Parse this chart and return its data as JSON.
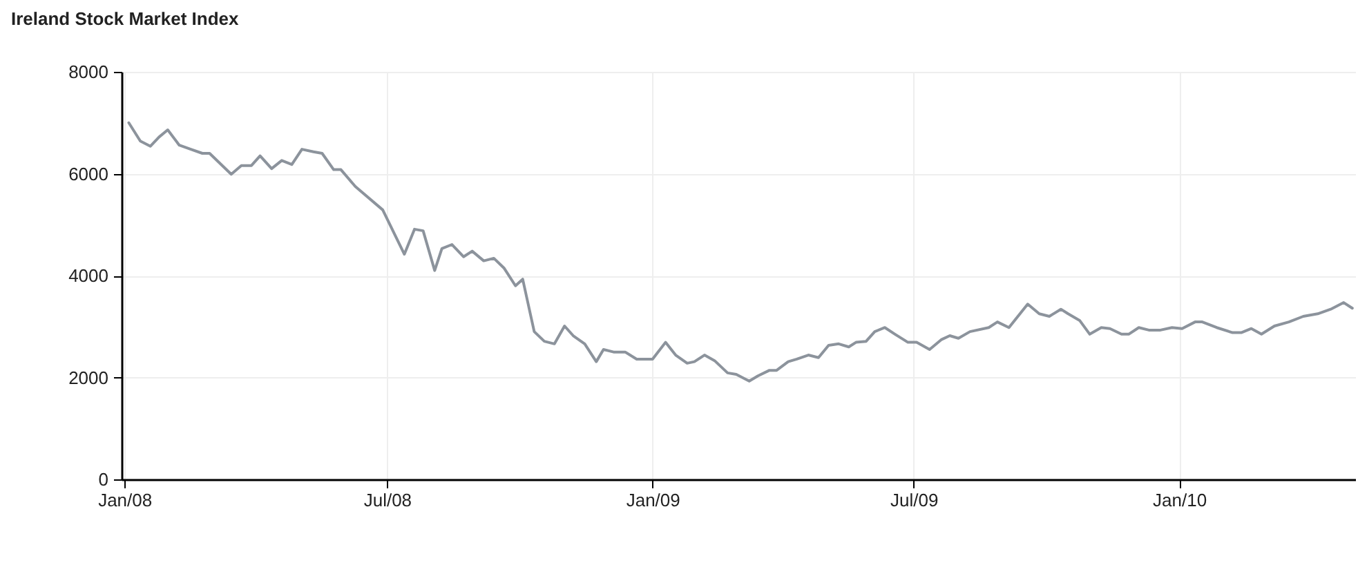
{
  "chart_data": {
    "type": "line",
    "title": "Ireland Stock Market Index",
    "x": [
      "2008-01-04",
      "2008-01-12",
      "2008-01-19",
      "2008-01-25",
      "2008-01-31",
      "2008-02-08",
      "2008-02-16",
      "2008-02-24",
      "2008-02-29",
      "2008-03-15",
      "2008-03-22",
      "2008-03-29",
      "2008-04-04",
      "2008-04-12",
      "2008-04-19",
      "2008-04-26",
      "2008-05-03",
      "2008-05-11",
      "2008-05-17",
      "2008-05-25",
      "2008-05-30",
      "2008-06-09",
      "2008-06-28",
      "2008-07-13",
      "2008-07-20",
      "2008-07-26",
      "2008-08-03",
      "2008-08-08",
      "2008-08-15",
      "2008-08-23",
      "2008-08-29",
      "2008-09-06",
      "2008-09-13",
      "2008-09-20",
      "2008-09-28",
      "2008-10-03",
      "2008-10-11",
      "2008-10-18",
      "2008-10-25",
      "2008-11-01",
      "2008-11-07",
      "2008-11-15",
      "2008-11-23",
      "2008-11-28",
      "2008-12-05",
      "2008-12-13",
      "2008-12-21",
      "2009-01-01",
      "2009-01-10",
      "2009-01-17",
      "2009-01-25",
      "2009-01-30",
      "2009-02-06",
      "2009-02-13",
      "2009-02-22",
      "2009-02-28",
      "2009-03-09",
      "2009-03-15",
      "2009-03-23",
      "2009-03-28",
      "2009-04-05",
      "2009-04-11",
      "2009-04-19",
      "2009-04-26",
      "2009-05-03",
      "2009-05-10",
      "2009-05-17",
      "2009-05-22",
      "2009-05-29",
      "2009-06-04",
      "2009-06-11",
      "2009-06-18",
      "2009-06-27",
      "2009-07-03",
      "2009-07-12",
      "2009-07-20",
      "2009-07-26",
      "2009-08-01",
      "2009-08-09",
      "2009-08-22",
      "2009-08-28",
      "2009-09-05",
      "2009-09-18",
      "2009-09-26",
      "2009-10-03",
      "2009-10-11",
      "2009-10-16",
      "2009-10-24",
      "2009-10-31",
      "2009-11-08",
      "2009-11-14",
      "2009-11-22",
      "2009-11-27",
      "2009-12-04",
      "2009-12-11",
      "2009-12-19",
      "2009-12-27",
      "2010-01-03",
      "2010-01-12",
      "2010-01-17",
      "2010-01-27",
      "2010-02-07",
      "2010-02-13",
      "2010-02-20",
      "2010-02-27",
      "2010-03-08",
      "2010-03-18",
      "2010-03-28",
      "2010-04-07",
      "2010-04-16",
      "2010-04-25",
      "2010-05-01"
    ],
    "series": [
      {
        "color": "#8c939c",
        "values": [
          7000,
          6640,
          6540,
          6720,
          6860,
          6560,
          6480,
          6400,
          6400,
          5990,
          6160,
          6160,
          6350,
          6100,
          6260,
          6180,
          6480,
          6430,
          6400,
          6080,
          6080,
          5750,
          5290,
          4420,
          4910,
          4880,
          4100,
          4530,
          4610,
          4370,
          4480,
          4290,
          4340,
          4150,
          3800,
          3930,
          2900,
          2710,
          2660,
          3010,
          2820,
          2660,
          2310,
          2550,
          2500,
          2500,
          2360,
          2360,
          2690,
          2440,
          2280,
          2310,
          2440,
          2330,
          2090,
          2060,
          1930,
          2030,
          2140,
          2140,
          2310,
          2360,
          2440,
          2390,
          2630,
          2660,
          2600,
          2690,
          2710,
          2900,
          2980,
          2850,
          2690,
          2690,
          2550,
          2740,
          2820,
          2770,
          2900,
          2980,
          3090,
          2980,
          3440,
          3250,
          3200,
          3340,
          3250,
          3120,
          2850,
          2980,
          2960,
          2850,
          2850,
          2980,
          2930,
          2930,
          2980,
          2960,
          3090,
          3090,
          2980,
          2880,
          2880,
          2960,
          2850,
          3010,
          3090,
          3200,
          3250,
          3340,
          3470,
          3360
        ]
      }
    ],
    "xlim": [
      "2007-12-30",
      "2010-05-03"
    ],
    "xticks": [
      {
        "value": "2008-01-01",
        "label": "Jan/08"
      },
      {
        "value": "2008-07-01",
        "label": "Jul/08"
      },
      {
        "value": "2009-01-01",
        "label": "Jan/09"
      },
      {
        "value": "2009-07-01",
        "label": "Jul/09"
      },
      {
        "value": "2010-01-01",
        "label": "Jan/10"
      }
    ],
    "ylim": [
      0,
      8000
    ],
    "yticks": [
      0,
      2000,
      4000,
      6000,
      8000
    ],
    "grid": true,
    "legend": false,
    "marker": "none",
    "line_style": "solid"
  }
}
